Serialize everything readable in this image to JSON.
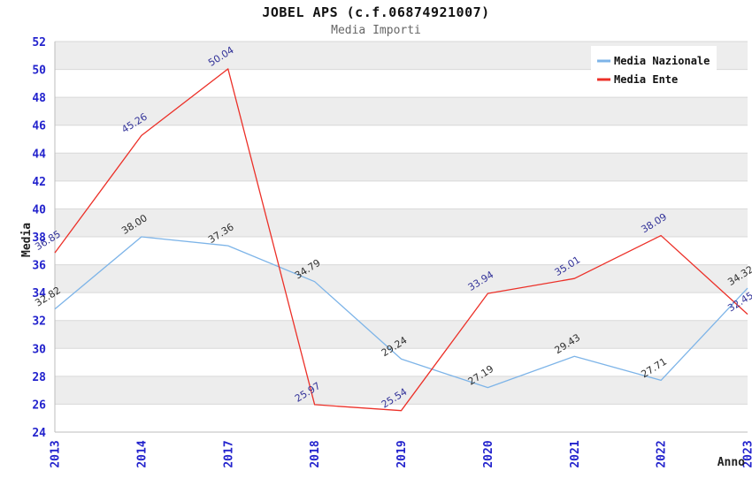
{
  "chart_data": {
    "type": "line",
    "title": "JOBEL APS (c.f.06874921007)",
    "subtitle": "Media Importi",
    "xlabel": "Anno",
    "ylabel": "Media",
    "categories": [
      "2013",
      "2014",
      "2017",
      "2018",
      "2019",
      "2020",
      "2021",
      "2022",
      "2023"
    ],
    "ylim": [
      24,
      52
    ],
    "ytick_step": 2,
    "grid": "horizontal-bands",
    "legend_position": "top-right",
    "series": [
      {
        "name": "Media Nazionale",
        "color": "#7db4e8",
        "label_color": "#2e2e2e",
        "values": [
          32.82,
          38.0,
          37.36,
          34.79,
          29.24,
          27.19,
          29.43,
          27.71,
          34.32
        ],
        "labels": [
          "32.82",
          "38.00",
          "37.36",
          "34.79",
          "29.24",
          "27.19",
          "29.43",
          "27.71",
          "34.32"
        ]
      },
      {
        "name": "Media Ente",
        "color": "#ec3028",
        "label_color": "#333399",
        "values": [
          36.85,
          45.26,
          50.04,
          25.97,
          25.54,
          33.94,
          35.01,
          38.09,
          32.45
        ],
        "labels": [
          "36.85",
          "45.26",
          "50.04",
          "25.97",
          "25.54",
          "33.94",
          "35.01",
          "38.09",
          "32.45"
        ]
      }
    ],
    "colors": {
      "tick_label": "#2323cd",
      "band": "#ededed",
      "gridline": "#d8d8d8",
      "axis_line": "#bdbdbd",
      "title": "#111111",
      "subtitle": "#666666",
      "legend_background": "#ffffff"
    }
  }
}
